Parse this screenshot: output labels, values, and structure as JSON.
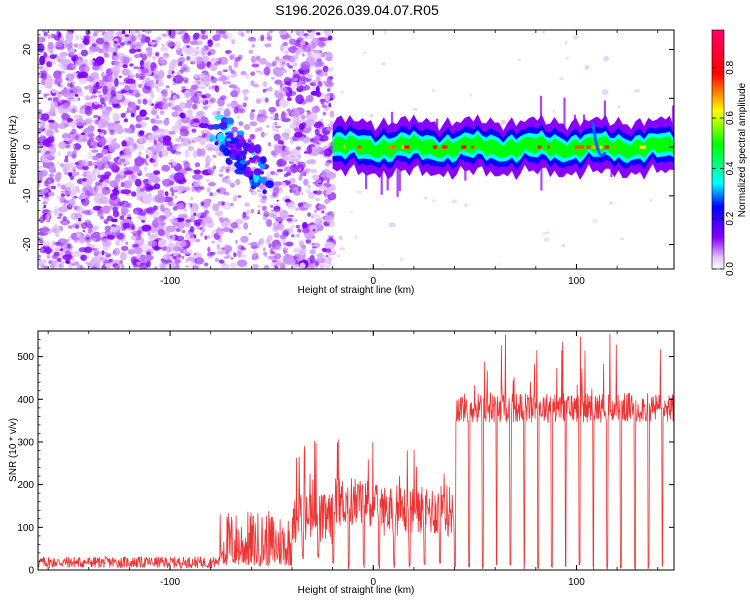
{
  "title": "S196.2026.039.04.07.R05",
  "chart_data": [
    {
      "type": "heatmap",
      "xlabel": "Height of straight line (km)",
      "ylabel": "Frequency (Hz)",
      "xlim": [
        -165,
        148
      ],
      "ylim": [
        -25,
        24
      ],
      "xticks": [
        -100,
        0,
        100
      ],
      "yticks": [
        20,
        10,
        0,
        -10,
        -20
      ],
      "colorbar": {
        "label": "Normalized spectral amplitude",
        "range": [
          0,
          0.95
        ],
        "ticks": [
          "0.0",
          "0.2",
          "0.4",
          "0.6",
          "0.8"
        ],
        "tick_values": [
          0.0,
          0.2,
          0.4,
          0.6,
          0.8
        ]
      },
      "regions": [
        {
          "x": [
            -165,
            -80
          ],
          "amplitude": 0.2,
          "pattern": "scattered-noise"
        },
        {
          "x": [
            -80,
            -48
          ],
          "amplitude": 0.35,
          "pattern": "diagonal-track"
        },
        {
          "x": [
            -48,
            -20
          ],
          "amplitude": 0.15,
          "pattern": "scattered-noise"
        },
        {
          "x": [
            -20,
            148
          ],
          "amplitude": 0.9,
          "pattern": "narrow-band-at-0-Hz"
        }
      ]
    },
    {
      "type": "line",
      "xlabel": "Height of straight line (km)",
      "ylabel": "SNR (10 * v/v)",
      "xlim": [
        -165,
        148
      ],
      "ylim": [
        0,
        560
      ],
      "xticks": [
        -100,
        0,
        100
      ],
      "yticks": [
        0,
        100,
        200,
        300,
        400,
        500
      ],
      "color": "#ee3333",
      "segments": [
        {
          "x": [
            -165,
            -76
          ],
          "mean": 18,
          "range": [
            5,
            32
          ]
        },
        {
          "x": [
            -76,
            -40
          ],
          "mean": 60,
          "range": [
            10,
            140
          ]
        },
        {
          "x": [
            -40,
            -20
          ],
          "mean": 120,
          "range": [
            20,
            320
          ]
        },
        {
          "x": [
            -20,
            0
          ],
          "mean": 160,
          "range": [
            0,
            320
          ]
        },
        {
          "x": [
            0,
            40
          ],
          "mean": 140,
          "range": [
            0,
            290
          ]
        },
        {
          "x": [
            40,
            148
          ],
          "mean": 380,
          "range": [
            0,
            555
          ]
        }
      ]
    }
  ]
}
